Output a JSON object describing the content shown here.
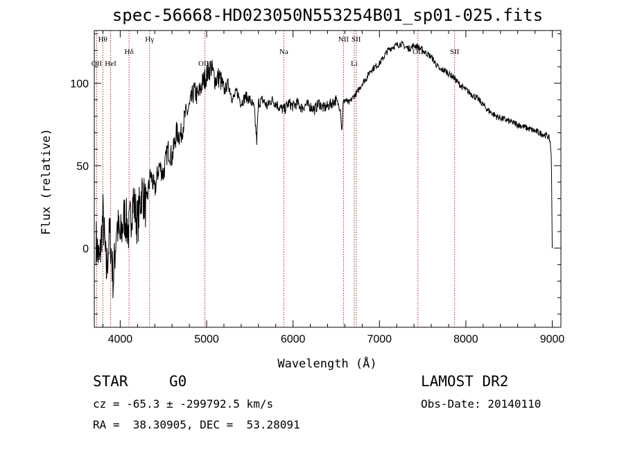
{
  "chart_data": {
    "type": "line",
    "title": "spec-56668-HD023050N553254B01_sp01-025.fits",
    "xlabel": "Wavelength (Å)",
    "ylabel": "Flux (relative)",
    "xlim": [
      3700,
      9100
    ],
    "ylim": [
      -48,
      132
    ],
    "xticks": [
      4000,
      5000,
      6000,
      7000,
      8000,
      9000
    ],
    "yticks": [
      0,
      50,
      100
    ],
    "grid": false,
    "line_color": "#000000",
    "marker_color": "#b22222",
    "series": [
      {
        "x": [
          3720,
          3760,
          3800,
          3840,
          3880,
          3920,
          3960,
          4000,
          4050,
          4100,
          4150,
          4200,
          4250,
          4300,
          4350,
          4400,
          4450,
          4500,
          4550,
          4600,
          4650,
          4700,
          4750,
          4800,
          4850,
          4900,
          4950,
          5000,
          5050,
          5100,
          5150,
          5200,
          5250,
          5300,
          5350,
          5400,
          5450,
          5500,
          5550,
          5580,
          5600,
          5650,
          5700,
          5750,
          5800,
          5850,
          5900,
          5950,
          6000,
          6050,
          6100,
          6150,
          6200,
          6250,
          6300,
          6350,
          6400,
          6450,
          6500,
          6550,
          6565,
          6580,
          6600,
          6650,
          6700,
          6750,
          6800,
          6850,
          6900,
          6950,
          7000,
          7050,
          7100,
          7150,
          7200,
          7250,
          7300,
          7350,
          7400,
          7450,
          7500,
          7550,
          7600,
          7650,
          7700,
          7750,
          7800,
          7850,
          7900,
          7950,
          8000,
          8050,
          8100,
          8150,
          8200,
          8250,
          8300,
          8350,
          8400,
          8450,
          8500,
          8550,
          8600,
          8650,
          8700,
          8750,
          8800,
          8850,
          8900,
          8950,
          8975,
          8990,
          9000
        ],
        "y": [
          5,
          -10,
          20,
          -15,
          10,
          -20,
          15,
          5,
          20,
          10,
          30,
          15,
          35,
          25,
          45,
          35,
          50,
          45,
          60,
          55,
          70,
          68,
          80,
          85,
          95,
          92,
          100,
          105,
          110,
          102,
          104,
          95,
          100,
          90,
          95,
          88,
          92,
          90,
          85,
          65,
          88,
          90,
          86,
          90,
          88,
          85,
          84,
          88,
          86,
          88,
          85,
          87,
          86,
          84,
          88,
          85,
          86,
          88,
          90,
          84,
          70,
          88,
          90,
          88,
          92,
          95,
          100,
          103,
          108,
          110,
          112,
          116,
          120,
          122,
          123,
          124,
          122,
          121,
          123,
          122,
          120,
          118,
          116,
          112,
          108,
          108,
          106,
          104,
          101,
          98,
          96,
          94,
          92,
          90,
          87,
          84,
          82,
          80,
          79,
          78,
          77,
          76,
          75,
          74,
          73,
          72,
          71,
          70,
          69,
          68,
          65,
          55,
          0
        ]
      }
    ],
    "line_markers": [
      {
        "label": "OII",
        "x": 3727,
        "row": 2
      },
      {
        "label": "Hθ",
        "x": 3798,
        "row": 0
      },
      {
        "label": "HeI",
        "x": 3889,
        "row": 2
      },
      {
        "label": "Hδ",
        "x": 4102,
        "row": 1
      },
      {
        "label": "Hγ",
        "x": 4340,
        "row": 0
      },
      {
        "label": "OIII",
        "x": 4980,
        "row": 2
      },
      {
        "label": "Na",
        "x": 5893,
        "row": 1
      },
      {
        "label": "NII",
        "x": 6584,
        "row": 0
      },
      {
        "label": "Li",
        "x": 6708,
        "row": 2
      },
      {
        "label": "SII",
        "x": 6731,
        "row": 0
      },
      {
        "label": "OII",
        "x": 7445,
        "row": 1
      },
      {
        "label": "SII",
        "x": 7870,
        "row": 1
      }
    ]
  },
  "info": {
    "class_label": "STAR",
    "subclass": "G0",
    "survey": "LAMOST DR2",
    "cz_line": "cz = -65.3 ± -299792.5 km/s",
    "obs_date_line": "Obs-Date: 20140110",
    "coords_line": "RA =  38.30905, DEC =  53.28091"
  }
}
